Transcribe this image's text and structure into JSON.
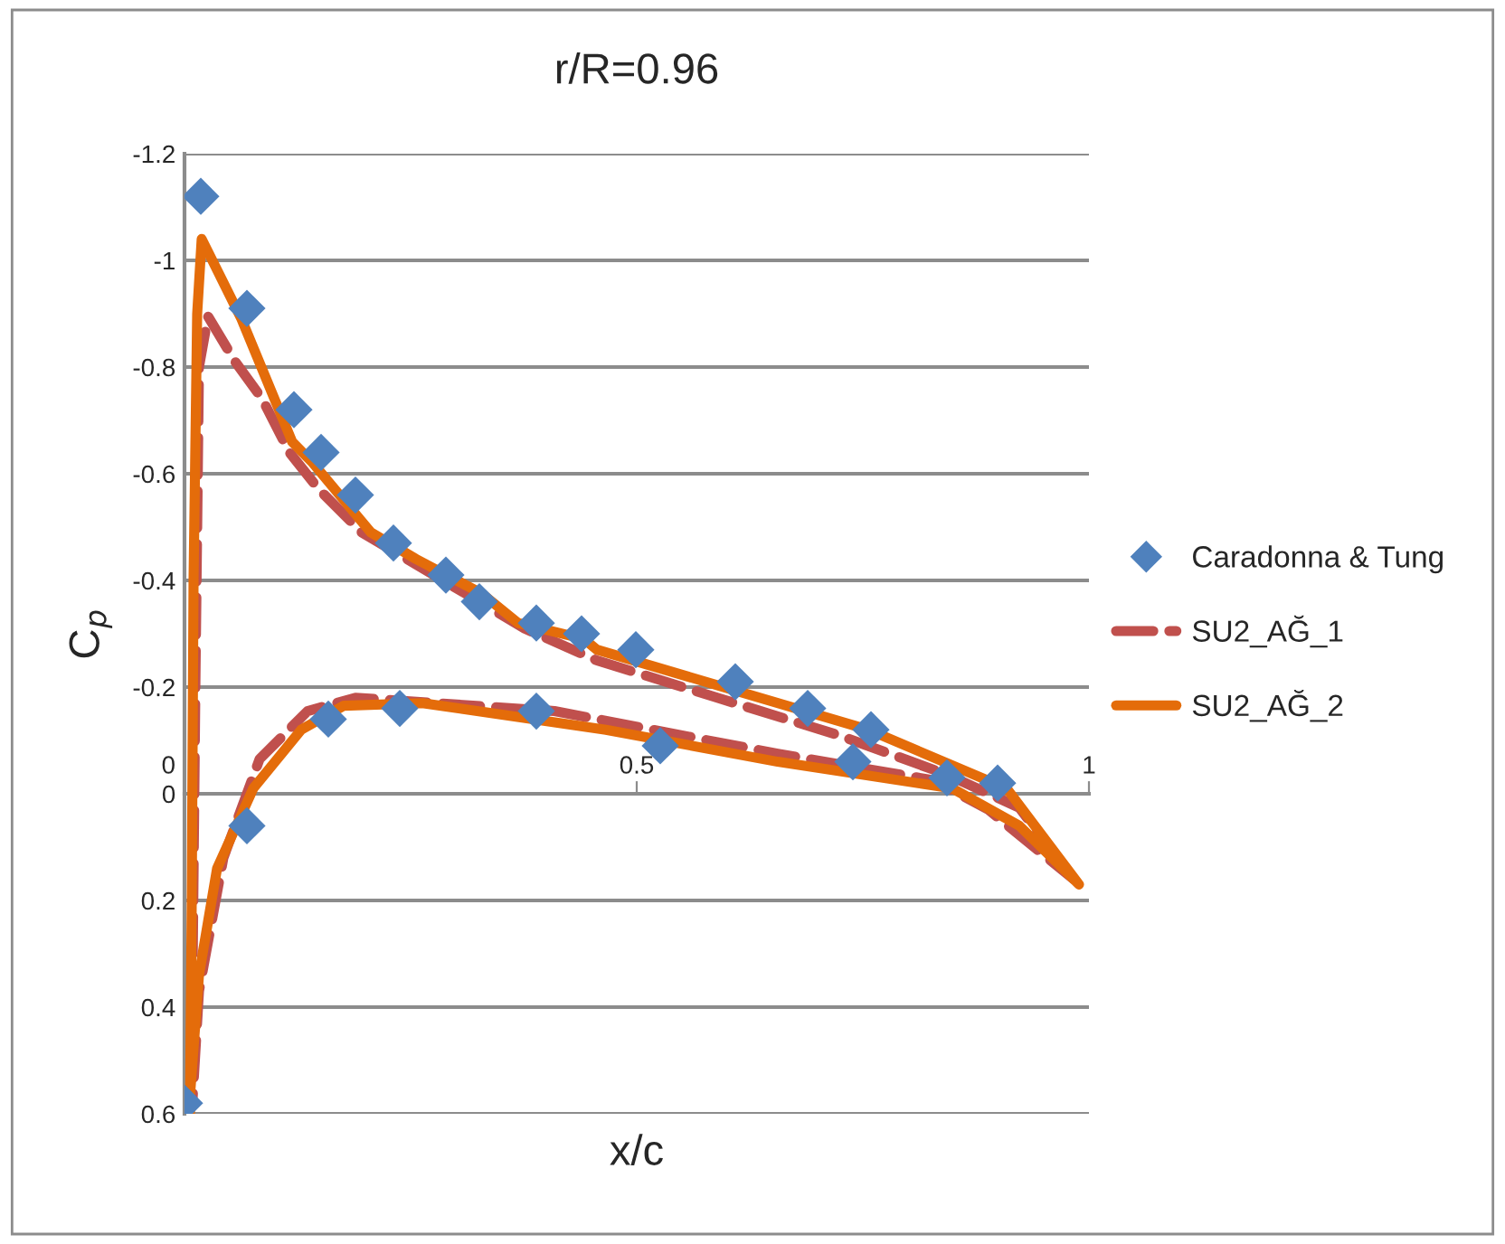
{
  "chart_data": {
    "type": "line",
    "title": "r/R=0.96",
    "xlabel": "x/c",
    "ylabel": "C$_{p}$",
    "xlim": [
      0,
      1
    ],
    "xticks": [
      0,
      0.5,
      1
    ],
    "ylim": [
      0.6,
      -1.2
    ],
    "yticks": [
      -1.2,
      -1,
      -0.8,
      -0.6,
      -0.4,
      -0.2,
      0,
      0.2,
      0.4,
      0.6
    ],
    "grid": "y",
    "legend": "right",
    "series": [
      {
        "name": "Caradonna & Tung",
        "type": "scatter",
        "marker": "diamond",
        "color": "#4f81bd",
        "x": [
          0.018,
          0.069,
          0.121,
          0.151,
          0.189,
          0.231,
          0.289,
          0.326,
          0.389,
          0.439,
          0.499,
          0.609,
          0.689,
          0.759,
          0.899,
          0.526,
          0.739,
          0.843,
          0.159,
          0.238,
          0.389,
          0.069,
          0
        ],
        "values": [
          -1.12,
          -0.91,
          -0.72,
          -0.64,
          -0.56,
          -0.47,
          -0.41,
          -0.36,
          -0.32,
          -0.3,
          -0.27,
          -0.21,
          -0.16,
          -0.12,
          -0.02,
          -0.09,
          -0.06,
          -0.03,
          -0.14,
          -0.16,
          -0.155,
          0.06,
          0.58
        ]
      },
      {
        "name": "SU2_AĞ_1",
        "line_style": "dashed",
        "color": "#c0504d",
        "x": [
          0.008,
          0.012,
          0.016,
          0.026,
          0.056,
          0.086,
          0.116,
          0.149,
          0.196,
          0.236,
          0.376,
          0.456,
          0.589,
          0.723,
          0.843,
          0.923,
          0.983,
          0.889,
          0.829,
          0.656,
          0.456,
          0.409,
          0.189,
          0.136,
          0.083,
          0.043,
          0.016,
          0.009
        ],
        "values": [
          0.5,
          -0.2,
          -0.8,
          -0.895,
          -0.81,
          -0.74,
          -0.64,
          -0.57,
          -0.49,
          -0.45,
          -0.31,
          -0.25,
          -0.18,
          -0.11,
          -0.036,
          0.026,
          0.16,
          0.03,
          -0.025,
          -0.075,
          -0.14,
          -0.155,
          -0.18,
          -0.155,
          -0.065,
          0.12,
          0.37,
          0.57
        ]
      },
      {
        "name": "SU2_AĞ_2",
        "line_style": "solid",
        "color": "#e46c0a",
        "x": [
          0.006,
          0.008,
          0.01,
          0.014,
          0.019,
          0.063,
          0.119,
          0.142,
          0.206,
          0.256,
          0.329,
          0.369,
          0.442,
          0.456,
          0.756,
          0.909,
          0.989,
          0.923,
          0.849,
          0.656,
          0.466,
          0.263,
          0.176,
          0.129,
          0.076,
          0.036,
          0.016,
          0.005
        ],
        "values": [
          0.6,
          0.2,
          -0.4,
          -0.9,
          -1.04,
          -0.89,
          -0.66,
          -0.62,
          -0.49,
          -0.44,
          -0.375,
          -0.32,
          -0.29,
          -0.27,
          -0.12,
          -0.01,
          0.17,
          0.06,
          -0.01,
          -0.06,
          -0.12,
          -0.17,
          -0.165,
          -0.12,
          -0.01,
          0.14,
          0.34,
          0.59
        ]
      }
    ]
  }
}
